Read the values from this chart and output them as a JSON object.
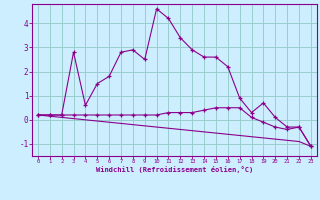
{
  "x": [
    0,
    1,
    2,
    3,
    4,
    5,
    6,
    7,
    8,
    9,
    10,
    11,
    12,
    13,
    14,
    15,
    16,
    17,
    18,
    19,
    20,
    21,
    22,
    23
  ],
  "series1": [
    0.2,
    0.2,
    0.2,
    2.8,
    0.6,
    1.5,
    1.8,
    2.8,
    2.9,
    2.5,
    4.6,
    4.2,
    3.4,
    2.9,
    2.6,
    2.6,
    2.2,
    0.9,
    0.3,
    0.7,
    0.1,
    -0.3,
    -0.3,
    -1.1
  ],
  "series2": [
    0.2,
    0.2,
    0.2,
    0.2,
    0.2,
    0.2,
    0.2,
    0.2,
    0.2,
    0.2,
    0.2,
    0.3,
    0.3,
    0.3,
    0.4,
    0.5,
    0.5,
    0.5,
    0.1,
    -0.1,
    -0.3,
    -0.4,
    -0.3,
    -1.1
  ],
  "series3": [
    0.2,
    0.15,
    0.1,
    0.05,
    0.0,
    -0.05,
    -0.1,
    -0.15,
    -0.2,
    -0.25,
    -0.3,
    -0.35,
    -0.4,
    -0.45,
    -0.5,
    -0.55,
    -0.6,
    -0.65,
    -0.7,
    -0.75,
    -0.8,
    -0.85,
    -0.9,
    -1.1
  ],
  "line_color": "#8B008B",
  "bg_color": "#cceeff",
  "grid_color": "#99cccc",
  "axis_color": "#8B008B",
  "xlabel": "Windchill (Refroidissement éolien,°C)",
  "ylim": [
    -1.5,
    4.8
  ],
  "xlim": [
    -0.5,
    23.5
  ],
  "yticks": [
    -1,
    0,
    1,
    2,
    3,
    4
  ],
  "xticks": [
    0,
    1,
    2,
    3,
    4,
    5,
    6,
    7,
    8,
    9,
    10,
    11,
    12,
    13,
    14,
    15,
    16,
    17,
    18,
    19,
    20,
    21,
    22,
    23
  ]
}
